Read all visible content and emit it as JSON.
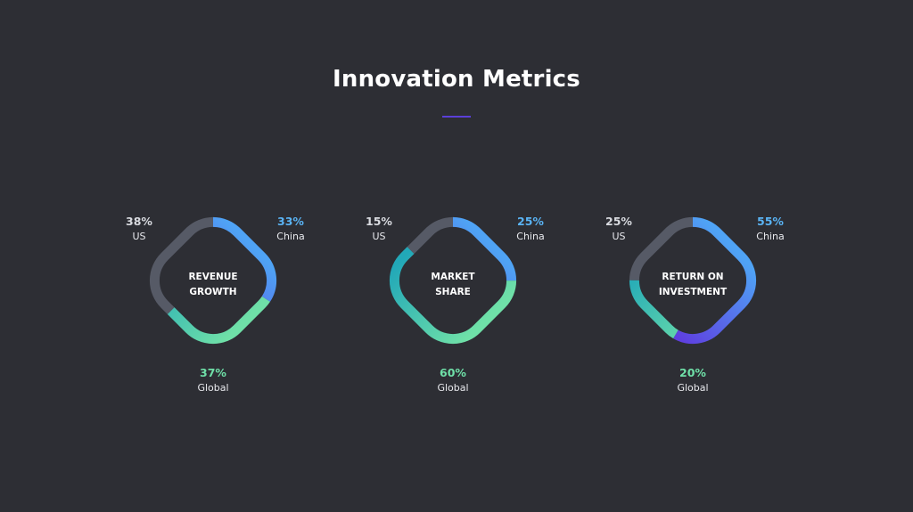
{
  "title": "Innovation Metrics",
  "colors": {
    "background": "#2d2e34",
    "accent_rule": "#5b3fd9",
    "us": "#565a66",
    "china_start": "#4fa3f5",
    "china_end": "#5e3fe0",
    "global_start": "#6fe0a8",
    "global_end": "#22a8b8",
    "china_label": "#5ab4f5",
    "global_label": "#6fe0a8",
    "us_label": "#d9dbe0"
  },
  "chart_data": [
    {
      "type": "pie",
      "variant": "rounded-square-ring",
      "center_label": [
        "REVENUE",
        "GROWTH"
      ],
      "slices": [
        {
          "label": "China",
          "value": 33
        },
        {
          "label": "Global",
          "value": 37
        },
        {
          "label": "US",
          "value": 38
        }
      ]
    },
    {
      "type": "pie",
      "variant": "rounded-square-ring",
      "center_label": [
        "MARKET",
        "SHARE"
      ],
      "slices": [
        {
          "label": "China",
          "value": 25
        },
        {
          "label": "Global",
          "value": 60
        },
        {
          "label": "US",
          "value": 15
        }
      ]
    },
    {
      "type": "pie",
      "variant": "rounded-square-ring",
      "center_label": [
        "RETURN ON",
        "INVESTMENT"
      ],
      "slices": [
        {
          "label": "China",
          "value": 55
        },
        {
          "label": "Global",
          "value": 20
        },
        {
          "label": "US",
          "value": 25
        }
      ]
    }
  ]
}
